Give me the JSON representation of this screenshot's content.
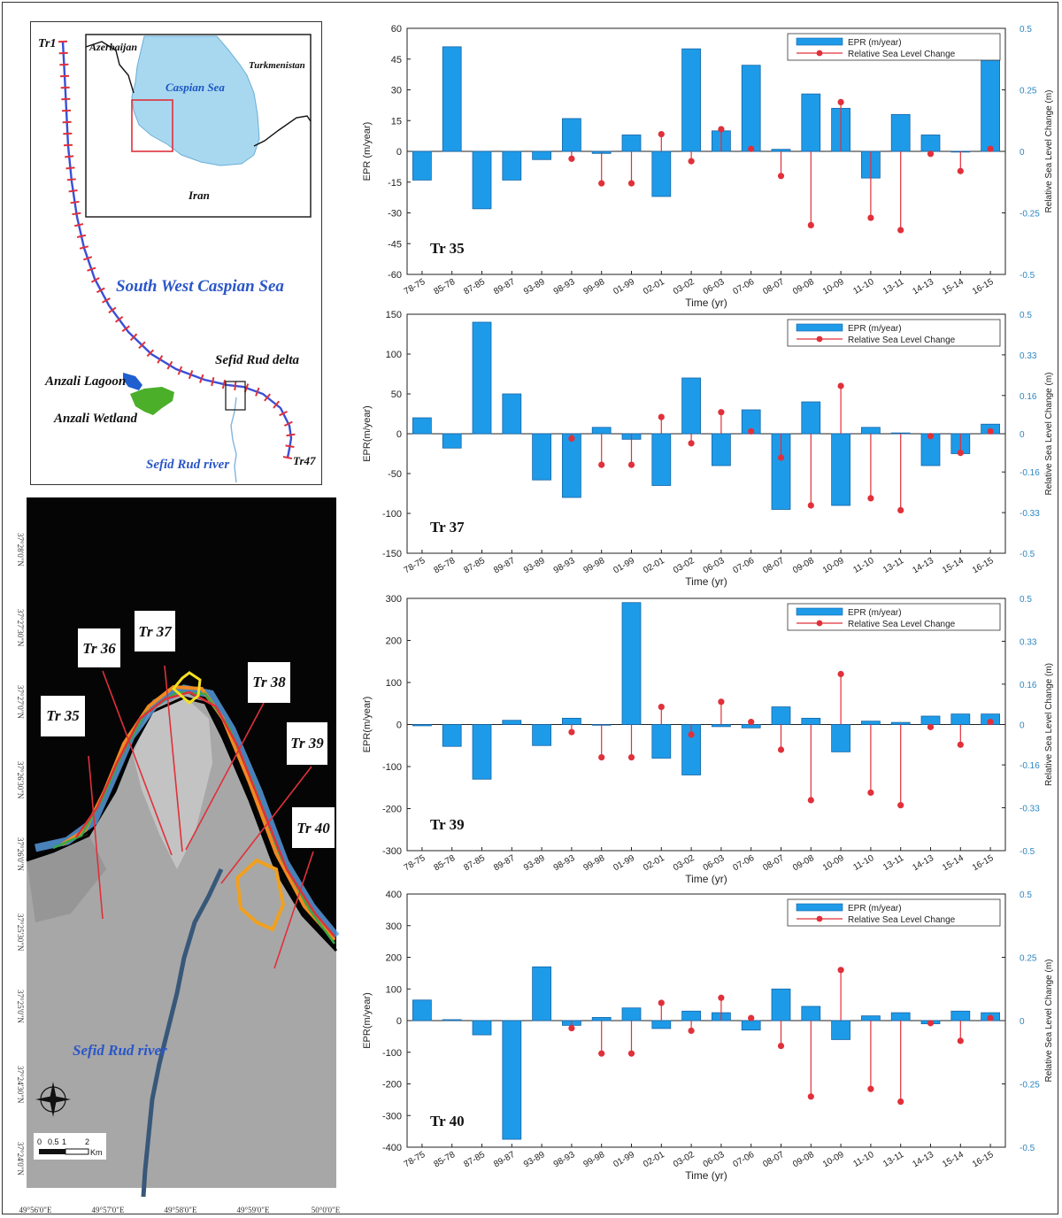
{
  "map": {
    "top_label": "Tr1",
    "bottom_label": "Tr47",
    "sea_label": "South West Caspian Sea",
    "delta_label": "Sefid Rud delta",
    "lagoon_label": "Anzali Lagoon",
    "wetland_label": "Anzali Wetland",
    "river_label": "Sefid Rud river",
    "inset": {
      "azerbaijan": "Azerbaijan",
      "turkmenistan": "Turkmenistan",
      "caspian": "Caspian Sea",
      "iran": "Iran"
    },
    "colors": {
      "sea": "#a8d8f0",
      "wetland": "#4caf2a",
      "lagoon": "#1f5fd0",
      "coast": "#3a4fd8",
      "ticks": "#e0303a"
    }
  },
  "satellite": {
    "transects": [
      "Tr 35",
      "Tr 36",
      "Tr 37",
      "Tr 38",
      "Tr 39",
      "Tr 40"
    ],
    "river_label": "Sefid Rud river",
    "scale_ticks": [
      "0",
      "0.5",
      "1",
      "2"
    ],
    "scale_unit": "Km",
    "lat_labels": [
      "37°28'0\"N",
      "37°27'30\"N",
      "37°27'0\"N",
      "37°26'30\"N",
      "37°26'0\"N",
      "37°25'30\"N",
      "37°25'0\"N",
      "37°24'30\"N",
      "37°24'0\"N"
    ],
    "lon_labels": [
      "49°56'0\"E",
      "49°57'0\"E",
      "49°58'0\"E",
      "49°59'0\"E",
      "50°0'0\"E"
    ]
  },
  "chart_data": [
    {
      "type": "bar",
      "panel_label": "Tr 35",
      "xlabel": "Time (yr)",
      "ylabel": "EPR (m/year)",
      "y2label": "Relative Sea Level Change (m)",
      "ylim": [
        -60,
        60
      ],
      "yticks": [
        -60,
        -45,
        -30,
        -15,
        0,
        15,
        30,
        45,
        60
      ],
      "y2lim": [
        -0.5,
        0.5
      ],
      "y2ticks": [
        "-0.5",
        "-0.25",
        "0",
        "0.25",
        "0.5"
      ],
      "legend": [
        "EPR (m/year)",
        "Relative Sea Level Change"
      ],
      "legend_position": "top-right",
      "categories": [
        "78-75",
        "85-78",
        "87-85",
        "89-87",
        "93-89",
        "98-93",
        "99-98",
        "01-99",
        "02-01",
        "03-02",
        "06-03",
        "07-06",
        "08-07",
        "09-08",
        "10-09",
        "11-10",
        "13-11",
        "14-13",
        "15-14",
        "16-15"
      ],
      "series": [
        {
          "name": "EPR (m/year)",
          "values": [
            -14,
            51,
            -28,
            -14,
            -4,
            16,
            -1,
            8,
            -22,
            50,
            10,
            42,
            1,
            28,
            21,
            -13,
            18,
            8,
            0,
            52
          ]
        },
        {
          "name": "Relative Sea Level Change",
          "values": [
            0,
            0,
            0,
            0,
            0,
            -0.03,
            -0.13,
            -0.13,
            0.07,
            -0.04,
            0.09,
            0.01,
            -0.1,
            -0.3,
            0.2,
            -0.27,
            -0.32,
            -0.01,
            -0.08,
            0.01
          ]
        }
      ]
    },
    {
      "type": "bar",
      "panel_label": "Tr 37",
      "xlabel": "Time (yr)",
      "ylabel": "EPR(m/year)",
      "y2label": "Relative Sea Level Change (m)",
      "ylim": [
        -150,
        150
      ],
      "yticks": [
        -150,
        -100,
        -50,
        0,
        50,
        100,
        150
      ],
      "y2lim": [
        -0.5,
        0.5
      ],
      "y2ticks": [
        "-0.5",
        "-0.33",
        "-0.16",
        "0",
        "0.16",
        "0.33",
        "0.5"
      ],
      "legend": [
        "EPR (m/year)",
        "Relative Sea Level Change"
      ],
      "legend_position": "top-right",
      "categories": [
        "78-75",
        "85-78",
        "87-85",
        "89-87",
        "93-89",
        "98-93",
        "99-98",
        "01-99",
        "02-01",
        "03-02",
        "06-03",
        "07-06",
        "08-07",
        "09-08",
        "10-09",
        "11-10",
        "13-11",
        "14-13",
        "15-14",
        "16-15"
      ],
      "series": [
        {
          "name": "EPR (m/year)",
          "values": [
            20,
            -18,
            140,
            50,
            -58,
            -80,
            8,
            -7,
            -65,
            70,
            -40,
            30,
            -95,
            40,
            -90,
            8,
            1,
            -40,
            -25,
            12
          ]
        },
        {
          "name": "Relative Sea Level Change",
          "values": [
            0,
            0,
            0,
            0,
            0,
            -0.02,
            -0.13,
            -0.13,
            0.07,
            -0.04,
            0.09,
            0.01,
            -0.1,
            -0.3,
            0.2,
            -0.27,
            -0.32,
            -0.01,
            -0.08,
            0.01
          ]
        }
      ]
    },
    {
      "type": "bar",
      "panel_label": "Tr 39",
      "xlabel": "Time (yr)",
      "ylabel": "EPR(m/year)",
      "y2label": "Relative Sea Level Change (m)",
      "ylim": [
        -300,
        300
      ],
      "yticks": [
        -300,
        -200,
        -100,
        0,
        100,
        200,
        300
      ],
      "y2lim": [
        -0.5,
        0.5
      ],
      "y2ticks": [
        "-0.5",
        "-0.33",
        "-0.16",
        "0",
        "0.16",
        "0.33",
        "0.5"
      ],
      "legend": [
        "EPR (m/year)",
        "Relative Sea Level Change"
      ],
      "legend_position": "top-right",
      "categories": [
        "78-75",
        "85-78",
        "87-85",
        "89-87",
        "93-89",
        "98-93",
        "99-98",
        "01-99",
        "02-01",
        "03-02",
        "06-03",
        "07-06",
        "08-07",
        "09-08",
        "10-09",
        "11-10",
        "13-11",
        "14-13",
        "15-14",
        "16-15"
      ],
      "series": [
        {
          "name": "EPR (m/year)",
          "values": [
            -3,
            -52,
            -130,
            10,
            -50,
            15,
            0,
            290,
            -80,
            -120,
            -5,
            -8,
            42,
            15,
            -65,
            8,
            5,
            20,
            25,
            25
          ]
        },
        {
          "name": "Relative Sea Level Change",
          "values": [
            0,
            0,
            0,
            0,
            0,
            -0.03,
            -0.13,
            -0.13,
            0.07,
            -0.04,
            0.09,
            0.01,
            -0.1,
            -0.3,
            0.2,
            -0.27,
            -0.32,
            -0.01,
            -0.08,
            0.01
          ]
        }
      ]
    },
    {
      "type": "bar",
      "panel_label": "Tr 40",
      "xlabel": "Time (yr)",
      "ylabel": "EPR(m/year)",
      "y2label": "Relative Sea Level Change (m)",
      "ylim": [
        -400,
        400
      ],
      "yticks": [
        -400,
        -300,
        -200,
        -100,
        0,
        100,
        200,
        300,
        400
      ],
      "y2lim": [
        -0.5,
        0.5
      ],
      "y2ticks": [
        "-0.5",
        "-0.25",
        "0",
        "0.25",
        "0.5"
      ],
      "legend": [
        "EPR (m/year)",
        "Relative Sea Level Change"
      ],
      "legend_position": "top-right",
      "categories": [
        "78-75",
        "85-78",
        "87-85",
        "89-87",
        "93-89",
        "98-93",
        "99-98",
        "01-99",
        "02-01",
        "03-02",
        "06-03",
        "07-06",
        "08-07",
        "09-08",
        "10-09",
        "11-10",
        "13-11",
        "14-13",
        "15-14",
        "16-15"
      ],
      "series": [
        {
          "name": "EPR (m/year)",
          "values": [
            65,
            3,
            -45,
            -375,
            170,
            -15,
            10,
            40,
            -25,
            30,
            25,
            -30,
            100,
            45,
            -60,
            15,
            25,
            -10,
            30,
            25
          ]
        },
        {
          "name": "Relative Sea Level Change",
          "values": [
            0,
            0,
            0,
            0,
            0,
            -0.03,
            -0.13,
            -0.13,
            0.07,
            -0.04,
            0.09,
            0.01,
            -0.1,
            -0.3,
            0.2,
            -0.27,
            -0.32,
            -0.01,
            -0.08,
            0.01
          ]
        }
      ]
    }
  ]
}
